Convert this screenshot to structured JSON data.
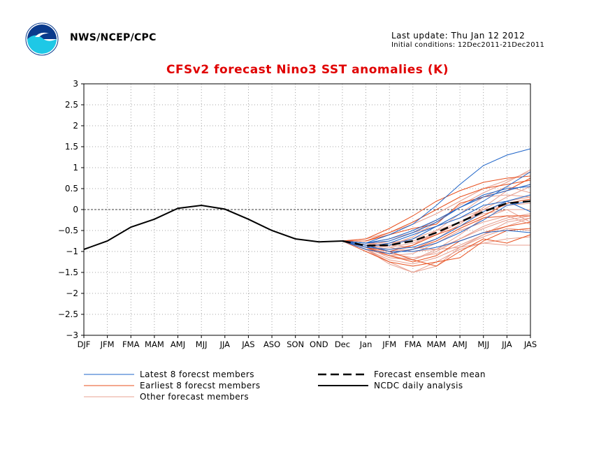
{
  "header": {
    "agency": "NWS/NCEP/CPC",
    "last_update": "Last update: Thu Jan 12 2012",
    "initial_conditions": "Initial conditions: 12Dec2011-21Dec2011"
  },
  "colors": {
    "title": "#e00000",
    "latest": "#1e64c8",
    "earliest": "#e8501e",
    "other": "#e8a090",
    "mean": "#000000",
    "analysis": "#000000"
  },
  "chart_data": {
    "type": "line",
    "title": "CFSv2 forecast Nino3 SST anomalies (K)",
    "categories": [
      "DJF",
      "JFM",
      "FMA",
      "MAM",
      "AMJ",
      "MJJ",
      "JJA",
      "JAS",
      "ASO",
      "SON",
      "OND",
      "Dec",
      "Jan",
      "JFM",
      "FMA",
      "MAM",
      "AMJ",
      "MJJ",
      "JJA",
      "JAS"
    ],
    "ylim": [
      -3,
      3
    ],
    "yticks": [
      "3",
      "2.5",
      "2",
      "1.5",
      "1",
      "0.5",
      "0",
      "−0.5",
      "−1",
      "−1.5",
      "−2",
      "−2.5",
      "−3"
    ],
    "grid": true,
    "legend_position": "bottom",
    "legend": [
      {
        "key": "latest",
        "label": "Latest 8 forecst members"
      },
      {
        "key": "earliest",
        "label": "Earliest 8 forecst members"
      },
      {
        "key": "other",
        "label": "Other forecast members"
      },
      {
        "key": "mean",
        "label": "Forecast ensemble mean"
      },
      {
        "key": "analysis",
        "label": "NCDC daily analysis"
      }
    ],
    "analysis": {
      "name": "NCDC daily analysis",
      "values": [
        -0.95,
        -0.75,
        -0.42,
        -0.23,
        0.03,
        0.1,
        0.01,
        -0.23,
        -0.5,
        -0.7,
        -0.77,
        -0.75
      ]
    },
    "ensemble_mean": {
      "name": "Forecast ensemble mean",
      "start_index": 11,
      "values": [
        -0.75,
        -0.86,
        -0.85,
        -0.75,
        -0.55,
        -0.3,
        -0.05,
        0.15,
        0.2
      ]
    },
    "members": {
      "start_index": 11,
      "latest": [
        [
          -0.75,
          -0.8,
          -0.6,
          -0.35,
          0.1,
          0.6,
          1.05,
          1.3,
          1.45
        ],
        [
          -0.75,
          -0.85,
          -0.85,
          -0.7,
          -0.4,
          -0.1,
          0.2,
          0.55,
          0.9
        ],
        [
          -0.75,
          -0.9,
          -0.95,
          -0.9,
          -0.7,
          -0.4,
          -0.05,
          0.2,
          0.35
        ],
        [
          -0.75,
          -0.8,
          -0.75,
          -0.55,
          -0.3,
          0.05,
          0.35,
          0.5,
          0.55
        ],
        [
          -0.75,
          -0.95,
          -1.05,
          -0.95,
          -0.8,
          -0.55,
          -0.25,
          0.1,
          0.2
        ],
        [
          -0.75,
          -0.9,
          -0.8,
          -0.6,
          -0.4,
          -0.2,
          0.1,
          0.2,
          -0.05
        ],
        [
          -0.75,
          -0.85,
          -1.0,
          -1.0,
          -0.9,
          -0.75,
          -0.55,
          -0.5,
          -0.55
        ],
        [
          -0.75,
          -0.8,
          -0.7,
          -0.5,
          -0.25,
          0.05,
          0.3,
          0.45,
          0.6
        ]
      ],
      "earliest": [
        [
          -0.75,
          -0.7,
          -0.45,
          -0.15,
          0.2,
          0.45,
          0.65,
          0.75,
          0.8
        ],
        [
          -0.75,
          -0.75,
          -0.55,
          -0.3,
          0.0,
          0.3,
          0.5,
          0.6,
          0.7
        ],
        [
          -0.75,
          -0.9,
          -1.0,
          -0.85,
          -0.6,
          -0.4,
          -0.15,
          0.15,
          0.25
        ],
        [
          -0.75,
          -1.0,
          -1.25,
          -1.35,
          -1.25,
          -1.15,
          -0.75,
          -0.5,
          -0.45
        ],
        [
          -0.75,
          -0.85,
          -1.0,
          -1.2,
          -1.35,
          -1.0,
          -0.7,
          -0.8,
          -0.6
        ],
        [
          -0.75,
          -0.95,
          -1.05,
          -0.95,
          -0.75,
          -0.45,
          -0.2,
          -0.15,
          -0.15
        ],
        [
          -0.75,
          -0.75,
          -0.6,
          -0.45,
          -0.35,
          0.15,
          0.3,
          0.45,
          0.75
        ],
        [
          -0.75,
          -0.9,
          -1.1,
          -1.25,
          -1.1,
          -0.75,
          -0.55,
          -0.4,
          -0.3
        ]
      ],
      "other": [
        [
          -0.75,
          -0.85,
          -0.9,
          -0.8,
          -0.6,
          -0.3,
          0.0,
          0.3,
          0.55
        ],
        [
          -0.75,
          -0.8,
          -0.85,
          -0.9,
          -0.95,
          -0.9,
          -0.8,
          -0.7,
          -0.65
        ],
        [
          -0.75,
          -0.9,
          -1.1,
          -1.2,
          -1.0,
          -0.7,
          -0.4,
          -0.2,
          -0.1
        ],
        [
          -0.75,
          -0.95,
          -1.25,
          -1.5,
          -1.35,
          -0.9,
          -0.6,
          -0.3,
          -0.2
        ],
        [
          -0.75,
          -0.7,
          -0.55,
          -0.35,
          -0.1,
          0.2,
          0.5,
          0.7,
          0.9
        ],
        [
          -0.75,
          -0.85,
          -1.0,
          -0.95,
          -0.7,
          -0.35,
          0.05,
          0.45,
          0.6
        ],
        [
          -0.75,
          -0.95,
          -1.3,
          -1.5,
          -1.25,
          -0.95,
          -0.8,
          -0.85,
          -0.85
        ],
        [
          -0.75,
          -0.8,
          -0.7,
          -0.55,
          -0.4,
          -0.2,
          0.0,
          0.1,
          0.15
        ],
        [
          -0.75,
          -0.85,
          -0.95,
          -0.85,
          -0.5,
          -0.1,
          0.3,
          0.55,
          0.4
        ],
        [
          -0.75,
          -0.9,
          -1.15,
          -1.2,
          -0.95,
          -0.6,
          -0.2,
          0.0,
          0.0
        ],
        [
          -0.75,
          -0.8,
          -0.8,
          -0.7,
          -0.5,
          -0.3,
          -0.1,
          0.0,
          -0.3
        ],
        [
          -0.75,
          -0.95,
          -1.1,
          -1.05,
          -0.8,
          -0.5,
          -0.3,
          -0.15,
          -0.35
        ],
        [
          -0.75,
          -0.85,
          -0.85,
          -0.65,
          -0.3,
          0.1,
          0.4,
          0.65,
          0.95
        ],
        [
          -0.75,
          -0.9,
          -1.05,
          -1.15,
          -1.05,
          -0.85,
          -0.6,
          -0.4,
          -0.2
        ],
        [
          -0.75,
          -0.8,
          -0.9,
          -1.0,
          -0.95,
          -0.7,
          -0.45,
          -0.25,
          -0.15
        ],
        [
          -0.75,
          -0.85,
          -0.75,
          -0.55,
          -0.25,
          0.05,
          0.3,
          0.35,
          0.3
        ],
        [
          -0.75,
          -0.95,
          -1.2,
          -1.3,
          -1.15,
          -0.9,
          -0.65,
          -0.45,
          -0.5
        ],
        [
          -0.75,
          -0.8,
          -0.8,
          -0.75,
          -0.6,
          -0.3,
          -0.05,
          0.2,
          0.3
        ]
      ]
    }
  }
}
